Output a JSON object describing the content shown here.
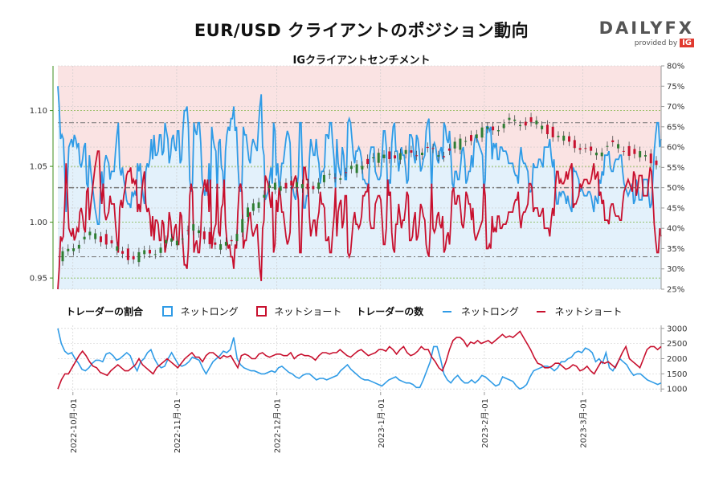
{
  "title": "EUR/USD クライアントのポジション動向",
  "subtitle": "IGクライアントセンチメント",
  "logo": {
    "brand_left": "DAILY",
    "brand_right": "FX",
    "byline": "provided by",
    "byline_brand": "IG"
  },
  "colors": {
    "long": "#2f9be6",
    "short": "#c8102e",
    "long_fill": "#e3f1fb",
    "short_fill": "#fae3e3",
    "candle_up": "#2e7d32",
    "candle_down": "#c8102e",
    "price_axis": "#3e8e1b"
  },
  "legend": {
    "ratio_heading": "トレーダーの割合",
    "count_heading": "トレーダーの数",
    "net_long": "ネットロング",
    "net_short": "ネットショート"
  },
  "chart_data": [
    {
      "type": "candlestick+line",
      "name": "price_and_sentiment",
      "y_left_ticks": [
        "0.95",
        "1.00",
        "1.05",
        "1.10"
      ],
      "y_left_range": [
        0.94,
        1.14
      ],
      "y_right_ticks": [
        "25%",
        "30%",
        "35%",
        "40%",
        "45%",
        "50%",
        "55%",
        "60%",
        "65%",
        "70%",
        "75%",
        "80%"
      ],
      "y_right_range": [
        25,
        80
      ],
      "ref_lines_percent": [
        33,
        50,
        66
      ],
      "grid": true,
      "net_long_percent": [
        75,
        70,
        62,
        63,
        62,
        54,
        44,
        52,
        60,
        61,
        62,
        60,
        63,
        62,
        60,
        61,
        56,
        55,
        57,
        60,
        61,
        51,
        50,
        58,
        54,
        51,
        48,
        45,
        43,
        41,
        41,
        49,
        54,
        49,
        56,
        58,
        57,
        56,
        52,
        54,
        54,
        54,
        59,
        63,
        66,
        55,
        53,
        55,
        52,
        50,
        47,
        46,
        46,
        45,
        49,
        48,
        49,
        48,
        56,
        54,
        56,
        51,
        48,
        46,
        54,
        56,
        55,
        57,
        62,
        57,
        63,
        58,
        58,
        59,
        63,
        63,
        58,
        59,
        66,
        64,
        62,
        56,
        58,
        62,
        63,
        60,
        59,
        64,
        64,
        56,
        57,
        64,
        69,
        69,
        70,
        65,
        52,
        49,
        51,
        66,
        64,
        63,
        66,
        66,
        61,
        52,
        50,
        48,
        51,
        48,
        56,
        48,
        65,
        62,
        60,
        59,
        49,
        61,
        62,
        55,
        54,
        48,
        59,
        63,
        65,
        64,
        67,
        67,
        70,
        64,
        65,
        56,
        50,
        49,
        51,
        65,
        63,
        63,
        60,
        57,
        56,
        60,
        62,
        61,
        60,
        59,
        65,
        70,
        73,
        60,
        58,
        47,
        48,
        49,
        52,
        55,
        51,
        66,
        64,
        53,
        56,
        50,
        52,
        56,
        56,
        59,
        62,
        64,
        63,
        61,
        50,
        50,
        48,
        47,
        50,
        53,
        66,
        66,
        54,
        45,
        45,
        48,
        48,
        57,
        62,
        60,
        58,
        58,
        62,
        58,
        56,
        51,
        54,
        54,
        55,
        63,
        63,
        62,
        66,
        66,
        61,
        57,
        50,
        62,
        56,
        54,
        53,
        60,
        58,
        52,
        52,
        66,
        67,
        66,
        62,
        58,
        56,
        59,
        59,
        60,
        59,
        57,
        52,
        52,
        51,
        51,
        49,
        58,
        60,
        60,
        60,
        54,
        53,
        52,
        52,
        53,
        58,
        64,
        64,
        60,
        48,
        52,
        51,
        61,
        65,
        66,
        59,
        59,
        54,
        57,
        60,
        58,
        58,
        55,
        51,
        52,
        63,
        63,
        62,
        58,
        56,
        63,
        62,
        59,
        54,
        55,
        57,
        58,
        64,
        66,
        67,
        60,
        49,
        60,
        61,
        60,
        57,
        56,
        59,
        60,
        57,
        66,
        65,
        62,
        61,
        64,
        58,
        51,
        50,
        54,
        54,
        52,
        52,
        55,
        59,
        60,
        57,
        51,
        52,
        54,
        54,
        58,
        55,
        61,
        63,
        62,
        61,
        60,
        59,
        58,
        49,
        52,
        65,
        65,
        64,
        65,
        57,
        61,
        60,
        61,
        57,
        57,
        60,
        60,
        59,
        59,
        59,
        58,
        56,
        56,
        56,
        56,
        54,
        53,
        53,
        51,
        57,
        60,
        57,
        56,
        56,
        55,
        54,
        49,
        49,
        50,
        56,
        55,
        55,
        55,
        57,
        57,
        56,
        55,
        60,
        60,
        60,
        60,
        62,
        58,
        55,
        57,
        50,
        46,
        46,
        49,
        48,
        49,
        49,
        48,
        46,
        48,
        46,
        45,
        44,
        55,
        54,
        54,
        53,
        52,
        49,
        50,
        49,
        48,
        48,
        48,
        49,
        49,
        48,
        46,
        44,
        48,
        47,
        46,
        52,
        51,
        54,
        53,
        58,
        58,
        58,
        59,
        55,
        54,
        54,
        56,
        57,
        57,
        57,
        58,
        58,
        54,
        51,
        50,
        49,
        48,
        49,
        50,
        51,
        46,
        47,
        52,
        50,
        47,
        47,
        47,
        52,
        52,
        52,
        52,
        48,
        45,
        46,
        52,
        59,
        63,
        66,
        66,
        60,
        62
      ],
      "price_x_labels": [
        "2022-10月-01",
        "2022-11月-01",
        "2022-12月-01",
        "2023-1月-01",
        "2023-2月-01",
        "2023-3月-01"
      ]
    },
    {
      "type": "line",
      "name": "trader_counts",
      "y_ticks": [
        "1000",
        "1500",
        "2000",
        "2500",
        "3000"
      ],
      "y_range": [
        900,
        3100
      ],
      "x_labels": [
        "2022-10月-01",
        "2022-11月-01",
        "2022-12月-01",
        "2023-1月-01",
        "2023-2月-01",
        "2023-3月-01"
      ],
      "series": [
        {
          "name": "ネットロング",
          "values": [
            3000,
            2500,
            2250,
            2150,
            2200,
            2000,
            1850,
            1650,
            1600,
            1700,
            1850,
            1950,
            1950,
            1900,
            2150,
            2200,
            2100,
            1950,
            2000,
            2100,
            2200,
            2100,
            1800,
            1600,
            1900,
            2000,
            2200,
            2300,
            2000,
            1800,
            1700,
            1750,
            2000,
            2200,
            2000,
            1800,
            1750,
            1800,
            1900,
            2050,
            2000,
            1950,
            1700,
            1500,
            1700,
            1900,
            2000,
            2100,
            2250,
            2200,
            2300,
            2700,
            2000,
            1800,
            1700,
            1650,
            1600,
            1600,
            1550,
            1500,
            1500,
            1550,
            1600,
            1550,
            1700,
            1750,
            1650,
            1550,
            1500,
            1400,
            1350,
            1450,
            1500,
            1500,
            1400,
            1300,
            1350,
            1350,
            1300,
            1350,
            1400,
            1450,
            1600,
            1700,
            1800,
            1650,
            1550,
            1450,
            1350,
            1300,
            1300,
            1250,
            1200,
            1150,
            1100,
            1200,
            1300,
            1350,
            1400,
            1300,
            1250,
            1200,
            1200,
            1150,
            1050,
            1050,
            1300,
            1600,
            1900,
            2400,
            2400,
            2000,
            1500,
            1300,
            1200,
            1350,
            1450,
            1300,
            1200,
            1200,
            1300,
            1200,
            1300,
            1450,
            1400,
            1300,
            1200,
            1100,
            1150,
            1400,
            1350,
            1300,
            1250,
            1100,
            1000,
            1050,
            1150,
            1400,
            1600,
            1650,
            1700,
            1750,
            1750,
            1700,
            1600,
            1700,
            1900,
            1900,
            2000,
            2050,
            2200,
            2250,
            2200,
            2350,
            2300,
            2200,
            1900,
            2000,
            1850,
            2200,
            1700,
            1600,
            1800,
            2000,
            1900,
            1800,
            1600,
            1450,
            1500,
            1500,
            1400,
            1300,
            1250,
            1200,
            1150,
            1200
          ]
        },
        {
          "name": "ネットショート",
          "values": [
            1000,
            1300,
            1500,
            1500,
            1700,
            1900,
            2100,
            2250,
            2100,
            1900,
            1750,
            1700,
            1550,
            1500,
            1450,
            1600,
            1700,
            1800,
            1700,
            1600,
            1600,
            1700,
            1800,
            2000,
            1800,
            1700,
            1600,
            1500,
            1700,
            1800,
            1900,
            2000,
            1900,
            1800,
            1700,
            1850,
            2000,
            2100,
            2200,
            2050,
            2050,
            1900,
            2100,
            2200,
            2200,
            2100,
            2000,
            2100,
            2050,
            2100,
            1900,
            1700,
            2100,
            2150,
            2100,
            2000,
            2000,
            2150,
            2200,
            2100,
            2050,
            2100,
            2150,
            2150,
            2100,
            2100,
            2200,
            2000,
            2100,
            2150,
            2100,
            2100,
            2050,
            1950,
            2100,
            2200,
            2200,
            2150,
            2200,
            2200,
            2300,
            2200,
            2100,
            2050,
            2150,
            2250,
            2300,
            2200,
            2100,
            2150,
            2200,
            2300,
            2300,
            2250,
            2400,
            2300,
            2150,
            2300,
            2400,
            2200,
            2100,
            2150,
            2250,
            2400,
            2300,
            2300,
            2050,
            1900,
            1700,
            1600,
            1900,
            2300,
            2600,
            2700,
            2700,
            2600,
            2400,
            2550,
            2500,
            2600,
            2500,
            2550,
            2600,
            2500,
            2600,
            2700,
            2800,
            2700,
            2750,
            2700,
            2800,
            2900,
            2700,
            2500,
            2300,
            2050,
            1850,
            1800,
            1700,
            1700,
            1750,
            1850,
            1850,
            1750,
            1650,
            1700,
            1800,
            1750,
            1600,
            1650,
            1750,
            1600,
            1500,
            1700,
            1900,
            1850,
            1900,
            1800,
            1700,
            1950,
            2200,
            2400,
            2000,
            1900,
            1800,
            1700,
            2000,
            2300,
            2400,
            2400,
            2300,
            2400
          ]
        }
      ]
    }
  ]
}
